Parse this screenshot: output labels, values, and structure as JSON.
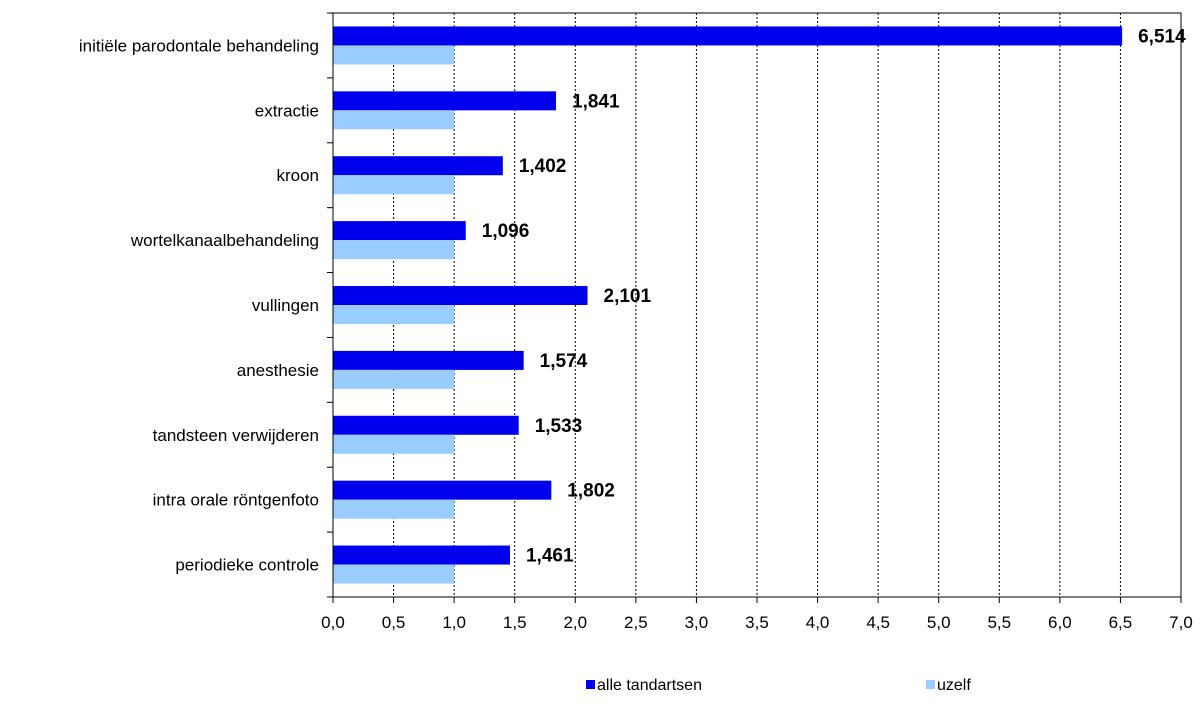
{
  "chart_data": {
    "type": "bar",
    "orientation": "horizontal",
    "title": "",
    "xlabel": "",
    "ylabel": "",
    "categories": [
      "initiële parodontale behandeling",
      "extractie",
      "kroon",
      "wortelkanaalbehandeling",
      "vullingen",
      "anesthesie",
      "tandsteen verwijderen",
      "intra orale röntgenfoto",
      "periodieke controle"
    ],
    "series": [
      {
        "name": "alle tandartsen",
        "color": "#0000ee",
        "values": [
          6.514,
          1.841,
          1.402,
          1.096,
          2.101,
          1.574,
          1.533,
          1.802,
          1.461
        ],
        "labels": [
          "6,514",
          "1,841",
          "1,402",
          "1,096",
          "2,101",
          "1,574",
          "1,533",
          "1,802",
          "1,461"
        ]
      },
      {
        "name": "uzelf",
        "color": "#99ccff",
        "values": [
          1,
          1,
          1,
          1,
          1,
          1,
          1,
          1,
          1
        ]
      }
    ],
    "xlim": [
      0,
      7
    ],
    "x_ticks": [
      0,
      0.5,
      1,
      1.5,
      2,
      2.5,
      3,
      3.5,
      4,
      4.5,
      5,
      5.5,
      6,
      6.5,
      7
    ],
    "x_tick_labels": [
      "0,0",
      "0,5",
      "1,0",
      "1,5",
      "2,0",
      "2,5",
      "3,0",
      "3,5",
      "4,0",
      "4,5",
      "5,0",
      "5,5",
      "6,0",
      "6,5",
      "7,0"
    ],
    "grid": "vertical-dashed",
    "legend_position": "bottom"
  }
}
